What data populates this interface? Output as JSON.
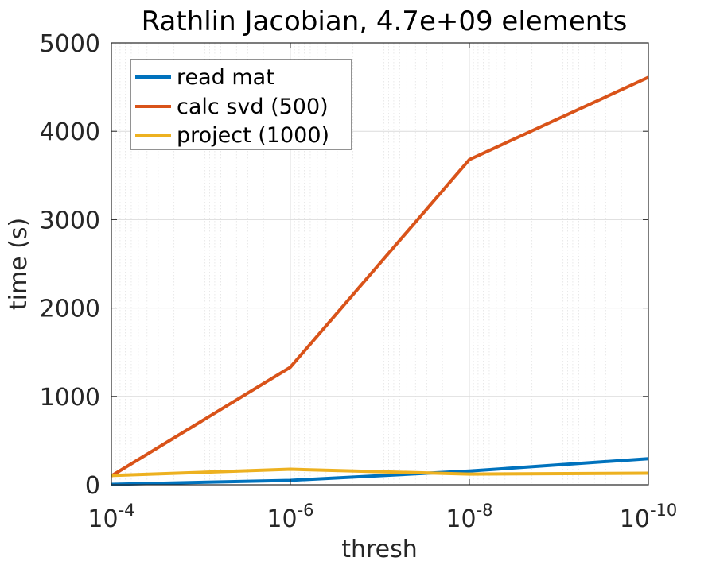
{
  "chart_data": {
    "type": "line",
    "title": "Rathlin Jacobian, 4.7e+09 elements",
    "xlabel": "thresh",
    "ylabel": "time (s)",
    "x_scale": "log",
    "x_reversed": true,
    "x": [
      0.0001,
      1e-06,
      1e-08,
      1e-10
    ],
    "xlim": [
      0.0001,
      1e-10
    ],
    "ylim": [
      0,
      5000
    ],
    "x_ticks": [
      {
        "base": "10",
        "exp": "-4"
      },
      {
        "base": "10",
        "exp": "-6"
      },
      {
        "base": "10",
        "exp": "-8"
      },
      {
        "base": "10",
        "exp": "-10"
      }
    ],
    "y_ticks": [
      "0",
      "1000",
      "2000",
      "3000",
      "4000",
      "5000"
    ],
    "grid": true,
    "legend_position": "top-left",
    "series": [
      {
        "name": "read mat",
        "color": "#0072BD",
        "values": [
          5,
          50,
          155,
          295
        ]
      },
      {
        "name": "calc svd (500)",
        "color": "#D95319",
        "values": [
          100,
          1330,
          3680,
          4610
        ]
      },
      {
        "name": "project (1000)",
        "color": "#EDB120",
        "values": [
          105,
          175,
          120,
          130
        ]
      }
    ]
  }
}
